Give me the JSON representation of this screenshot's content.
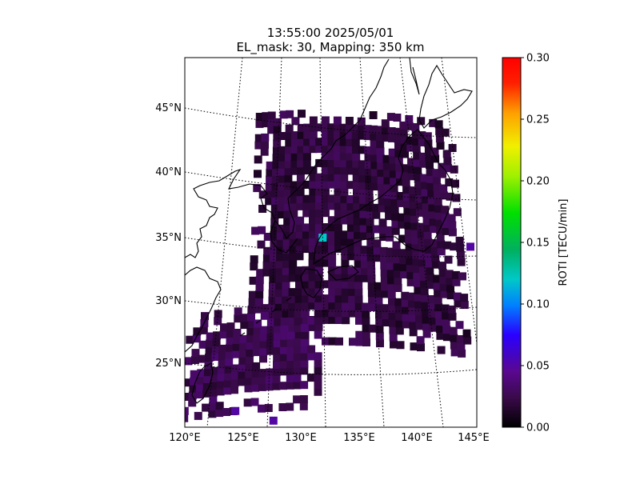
{
  "title": {
    "line1": "13:55:00 2025/05/01",
    "line2": "EL_mask: 30, Mapping: 350 km"
  },
  "map": {
    "projection": "conic",
    "lon_range": [
      120,
      145
    ],
    "lat_range": [
      20,
      49
    ],
    "lon_ticks": [
      "120°E",
      "125°E",
      "130°E",
      "135°E",
      "140°E",
      "145°E"
    ],
    "lat_ticks": [
      "25°N",
      "30°N",
      "35°N",
      "40°N",
      "45°N"
    ],
    "graticule": "dotted",
    "coastlines": true
  },
  "colorbar": {
    "label": "ROTI [TECU/min]",
    "colormap": "nipy_spectral",
    "range": [
      0,
      0.3
    ],
    "ticks": [
      "0.00",
      "0.05",
      "0.10",
      "0.15",
      "0.20",
      "0.25",
      "0.30"
    ]
  },
  "chart_data": {
    "type": "heatmap",
    "variable": "ROTI",
    "units": "TECU/min",
    "vmin": 0,
    "vmax": 0.3,
    "regions": [
      {
        "lon": [
          126,
          144
        ],
        "lat": [
          27,
          45
        ],
        "typical_value": 0.02
      },
      {
        "lon": [
          121,
          132
        ],
        "lat": [
          22,
          30
        ],
        "typical_value": 0.025
      }
    ],
    "notable_points": [
      {
        "lon": 131.8,
        "lat": 35.0,
        "value": 0.12
      },
      {
        "lon": 125,
        "lat": 22,
        "value": 0.05
      },
      {
        "lon": 128,
        "lat": 21,
        "value": 0.05
      },
      {
        "lon": 144.5,
        "lat": 35.5,
        "value": 0.05
      }
    ]
  }
}
